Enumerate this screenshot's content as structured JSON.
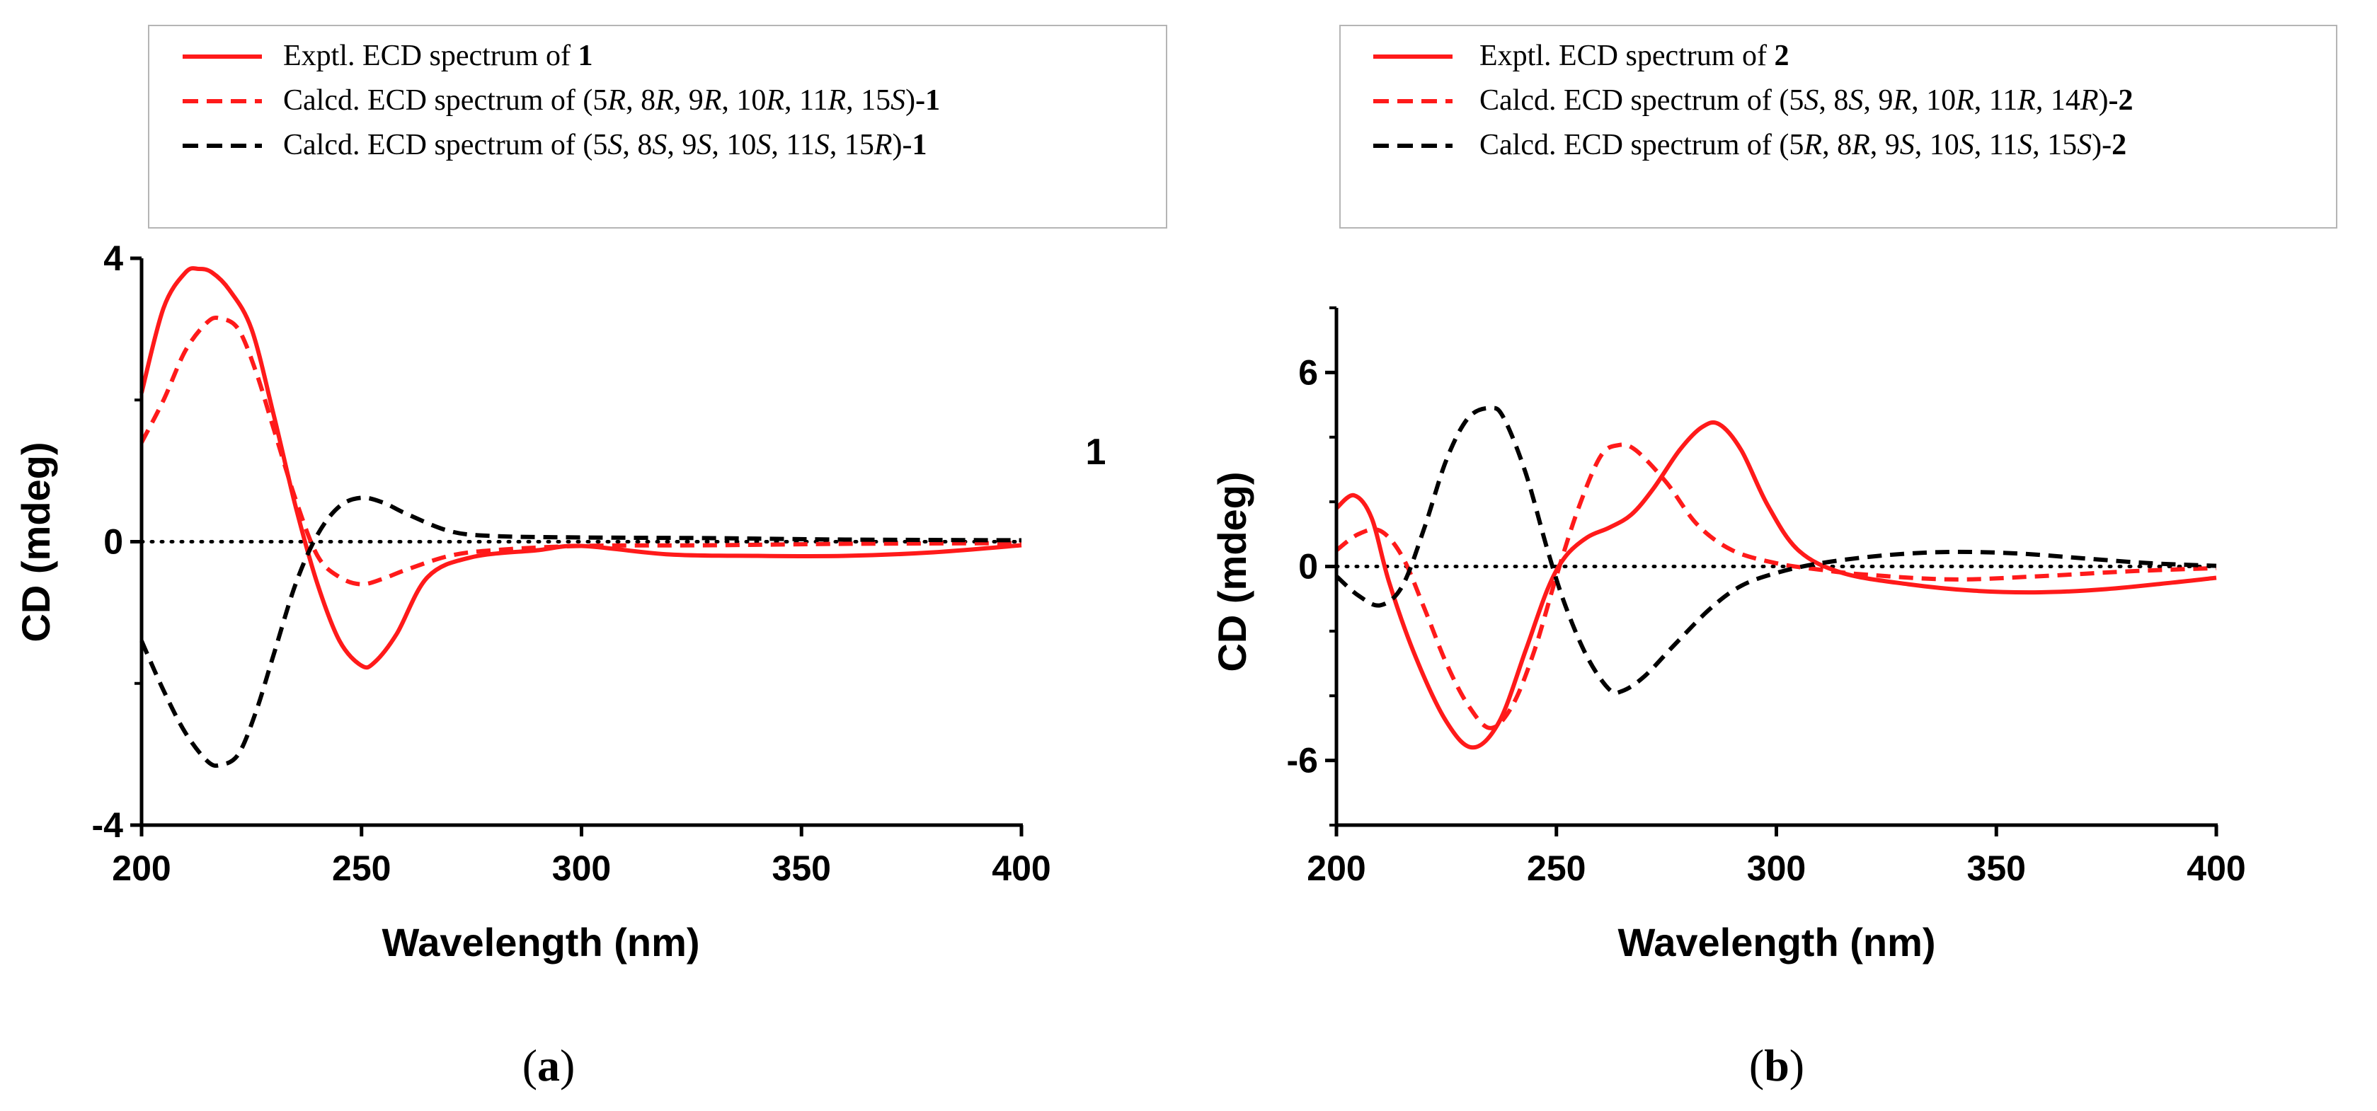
{
  "figure": {
    "panels": [
      {
        "id": "a",
        "label": "a",
        "label_open": "(",
        "label_close": ")",
        "legend": [
          {
            "style": "solid",
            "color": "#ff1a1a",
            "prefix": "Exptl. ECD spectrum of ",
            "parts": [
              {
                "t": "1",
                "b": true
              }
            ]
          },
          {
            "style": "dashed",
            "color": "#ff1a1a",
            "prefix": "Calcd. ECD spectrum of ",
            "parts": [
              {
                "t": "(5"
              },
              {
                "t": "R",
                "i": true
              },
              {
                "t": ", 8"
              },
              {
                "t": "R",
                "i": true
              },
              {
                "t": ", 9"
              },
              {
                "t": "R",
                "i": true
              },
              {
                "t": ", 10"
              },
              {
                "t": "R",
                "i": true
              },
              {
                "t": ", 11"
              },
              {
                "t": "R",
                "i": true
              },
              {
                "t": ", 15"
              },
              {
                "t": "S",
                "i": true
              },
              {
                "t": ")"
              },
              {
                "t": "-1",
                "b": true
              }
            ]
          },
          {
            "style": "dashed",
            "color": "#000000",
            "prefix": "Calcd. ECD spectrum of ",
            "parts": [
              {
                "t": "(5"
              },
              {
                "t": "S",
                "i": true
              },
              {
                "t": ", 8"
              },
              {
                "t": "S",
                "i": true
              },
              {
                "t": ", 9"
              },
              {
                "t": "S",
                "i": true
              },
              {
                "t": ", 10"
              },
              {
                "t": "S",
                "i": true
              },
              {
                "t": ", 11"
              },
              {
                "t": "S",
                "i": true
              },
              {
                "t": ", 15"
              },
              {
                "t": "R",
                "i": true
              },
              {
                "t": ")-"
              },
              {
                "t": "1",
                "b": true
              }
            ]
          }
        ],
        "compound_mark": "1"
      },
      {
        "id": "b",
        "label": "b",
        "label_open": "(",
        "label_close": ")",
        "legend": [
          {
            "style": "solid",
            "color": "#ff1a1a",
            "prefix": "Exptl. ECD spectrum of ",
            "parts": [
              {
                "t": "2",
                "b": true
              }
            ]
          },
          {
            "style": "dashed",
            "color": "#ff1a1a",
            "prefix": "Calcd. ECD spectrum of ",
            "parts": [
              {
                "t": "(5"
              },
              {
                "t": "S",
                "i": true
              },
              {
                "t": ", 8"
              },
              {
                "t": "S",
                "i": true
              },
              {
                "t": ", 9"
              },
              {
                "t": "R",
                "i": true
              },
              {
                "t": ", 10"
              },
              {
                "t": "R",
                "i": true
              },
              {
                "t": ", 11"
              },
              {
                "t": "R",
                "i": true
              },
              {
                "t": ", 14"
              },
              {
                "t": "R",
                "i": true
              },
              {
                "t": ")"
              },
              {
                "t": "-2",
                "b": true
              }
            ]
          },
          {
            "style": "dashed",
            "color": "#000000",
            "prefix": "Calcd. ECD spectrum of ",
            "parts": [
              {
                "t": "(5"
              },
              {
                "t": "R",
                "i": true
              },
              {
                "t": ", 8"
              },
              {
                "t": "R",
                "i": true
              },
              {
                "t": ", 9"
              },
              {
                "t": "S",
                "i": true
              },
              {
                "t": ", 10"
              },
              {
                "t": "S",
                "i": true
              },
              {
                "t": ", 11"
              },
              {
                "t": "S",
                "i": true
              },
              {
                "t": ", 15"
              },
              {
                "t": "S",
                "i": true
              },
              {
                "t": ")-"
              },
              {
                "t": "2",
                "b": true
              }
            ]
          }
        ],
        "compound_mark": ""
      }
    ]
  },
  "chart_data": [
    {
      "type": "line",
      "title": "",
      "xlabel": "Wavelength (nm)",
      "ylabel": "CD (mdeg)",
      "xlim": [
        200,
        400
      ],
      "ylim": [
        -4,
        4
      ],
      "xticks": [
        200,
        250,
        300,
        350,
        400
      ],
      "yticks": [
        -4,
        0,
        4
      ],
      "ytick_labels": [
        "-4",
        "0",
        "4"
      ],
      "yticks_minor": [
        -2,
        2
      ],
      "zero_line": "dotted",
      "series": [
        {
          "name": "Exptl. ECD spectrum of 1",
          "style": "solid",
          "color": "#ff1a1a",
          "x": [
            200,
            205,
            210,
            213,
            216,
            220,
            225,
            230,
            235,
            240,
            245,
            250,
            253,
            258,
            265,
            275,
            290,
            300,
            320,
            340,
            360,
            380,
            400
          ],
          "y": [
            2.1,
            3.3,
            3.8,
            3.85,
            3.8,
            3.55,
            3.0,
            1.8,
            0.5,
            -0.6,
            -1.4,
            -1.75,
            -1.7,
            -1.3,
            -0.5,
            -0.22,
            -0.12,
            -0.06,
            -0.18,
            -0.2,
            -0.2,
            -0.15,
            -0.05
          ]
        },
        {
          "name": "Calcd. ECD spectrum of (5R, 8R, 9R, 10R, 11R, 15S)-1",
          "style": "dashed",
          "color": "#ff1a1a",
          "x": [
            200,
            205,
            210,
            215,
            218,
            222,
            226,
            230,
            235,
            240,
            245,
            250,
            255,
            260,
            270,
            280,
            300,
            330,
            360,
            400
          ],
          "y": [
            1.4,
            2.0,
            2.7,
            3.1,
            3.15,
            3.0,
            2.4,
            1.6,
            0.6,
            -0.2,
            -0.5,
            -0.6,
            -0.52,
            -0.4,
            -0.2,
            -0.12,
            -0.06,
            -0.05,
            -0.03,
            -0.02
          ]
        },
        {
          "name": "Calcd. ECD spectrum of (5S, 8S, 9S, 10S, 11S, 15R)-1",
          "style": "dashed",
          "color": "#000000",
          "x": [
            200,
            205,
            210,
            215,
            218,
            222,
            226,
            230,
            235,
            240,
            245,
            250,
            255,
            260,
            270,
            280,
            300,
            330,
            360,
            400
          ],
          "y": [
            -1.4,
            -2.1,
            -2.7,
            -3.1,
            -3.15,
            -3.0,
            -2.4,
            -1.6,
            -0.6,
            0.1,
            0.5,
            0.62,
            0.55,
            0.4,
            0.15,
            0.08,
            0.06,
            0.05,
            0.03,
            0.02
          ]
        }
      ]
    },
    {
      "type": "line",
      "title": "",
      "xlabel": "Wavelength (nm)",
      "ylabel": "CD (mdeg)",
      "xlim": [
        200,
        400
      ],
      "ylim": [
        -8,
        8
      ],
      "xticks": [
        200,
        250,
        300,
        350,
        400
      ],
      "yticks": [
        -6,
        0,
        6
      ],
      "ytick_labels": [
        "-6",
        "0",
        "6"
      ],
      "yticks_minor": [
        -8,
        -4,
        -2,
        2,
        4,
        8
      ],
      "zero_line": "dotted",
      "series": [
        {
          "name": "Exptl. ECD spectrum of 2",
          "style": "solid",
          "color": "#ff1a1a",
          "x": [
            200,
            204,
            208,
            212,
            218,
            225,
            231,
            237,
            243,
            248,
            252,
            257,
            262,
            267,
            272,
            278,
            283,
            287,
            292,
            298,
            305,
            315,
            330,
            345,
            360,
            375,
            390,
            400
          ],
          "y": [
            1.8,
            2.2,
            1.5,
            -0.5,
            -2.8,
            -4.8,
            -5.6,
            -4.8,
            -2.6,
            -0.7,
            0.3,
            0.9,
            1.2,
            1.6,
            2.4,
            3.6,
            4.3,
            4.4,
            3.6,
            1.9,
            0.5,
            -0.2,
            -0.55,
            -0.75,
            -0.8,
            -0.7,
            -0.5,
            -0.35
          ]
        },
        {
          "name": "Calcd. ECD spectrum of (5S, 8S, 9R, 10R, 11R, 14R)-2",
          "style": "dashed",
          "color": "#ff1a1a",
          "x": [
            200,
            205,
            210,
            215,
            220,
            225,
            230,
            235,
            240,
            245,
            250,
            255,
            260,
            264,
            268,
            275,
            282,
            290,
            300,
            310,
            320,
            340,
            360,
            380,
            400
          ],
          "y": [
            0.5,
            1.0,
            1.1,
            0.3,
            -1.3,
            -3.0,
            -4.3,
            -5.0,
            -4.3,
            -2.6,
            -0.3,
            1.8,
            3.4,
            3.75,
            3.6,
            2.6,
            1.3,
            0.5,
            0.1,
            -0.1,
            -0.25,
            -0.4,
            -0.3,
            -0.15,
            -0.05
          ]
        },
        {
          "name": "Calcd. ECD spectrum of (5R, 8R, 9S, 10S, 11S, 15S)-2",
          "style": "dashed",
          "color": "#000000",
          "x": [
            200,
            205,
            210,
            215,
            220,
            225,
            230,
            235,
            238,
            243,
            248,
            252,
            257,
            262,
            265,
            270,
            277,
            285,
            292,
            300,
            310,
            325,
            340,
            355,
            370,
            385,
            400
          ],
          "y": [
            -0.3,
            -0.9,
            -1.2,
            -0.6,
            1.2,
            3.3,
            4.6,
            4.9,
            4.6,
            2.9,
            0.5,
            -1.2,
            -2.8,
            -3.8,
            -3.85,
            -3.4,
            -2.4,
            -1.3,
            -0.6,
            -0.2,
            0.1,
            0.35,
            0.45,
            0.4,
            0.25,
            0.1,
            0.02
          ]
        }
      ]
    }
  ]
}
